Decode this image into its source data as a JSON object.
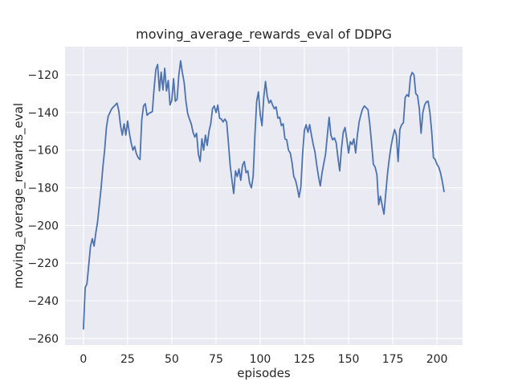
{
  "chart_data": {
    "type": "line",
    "title": "moving_average_rewards_eval of DDPG",
    "xlabel": "episodes",
    "ylabel": "moving_average_rewards_eval",
    "xticks": [
      0,
      25,
      50,
      75,
      100,
      125,
      150,
      175,
      200
    ],
    "yticks": [
      -260,
      -240,
      -220,
      -200,
      -180,
      -160,
      -140,
      -120
    ],
    "xlim": [
      -10.4,
      214.5
    ],
    "ylim": [
      -263.5,
      -105.0
    ],
    "grid": true,
    "legend": null,
    "colors": {
      "line": "#4c72b0",
      "plot_bg": "#eaeaf2",
      "grid": "#ffffff",
      "text": "#262626",
      "figure_bg": "#ffffff"
    },
    "series": [
      {
        "name": "DDPG",
        "x_start": 0,
        "x_step": 1,
        "values": [
          -255,
          -233,
          -231,
          -221,
          -211,
          -207,
          -211,
          -204,
          -198,
          -189,
          -180,
          -169,
          -160,
          -148,
          -142,
          -140,
          -138,
          -137,
          -136,
          -135,
          -139,
          -147,
          -152,
          -146,
          -152,
          -144.5,
          -151,
          -156,
          -160,
          -158,
          -162,
          -164,
          -165,
          -144,
          -136.5,
          -135.3,
          -141.5,
          -140.5,
          -140,
          -139.5,
          -127,
          -117,
          -114.5,
          -128.5,
          -118.5,
          -128,
          -116.5,
          -128.5,
          -123,
          -136,
          -133.5,
          -122,
          -134,
          -133,
          -120,
          -112.5,
          -119,
          -124,
          -134,
          -140.5,
          -143.5,
          -146,
          -150.5,
          -153,
          -151,
          -162,
          -166,
          -154,
          -160,
          -152,
          -157.5,
          -150,
          -146,
          -138,
          -136.5,
          -140,
          -136,
          -143,
          -143.5,
          -145,
          -143.5,
          -145,
          -156,
          -168,
          -176,
          -183,
          -171,
          -174,
          -170,
          -176,
          -168,
          -166,
          -172,
          -171,
          -177.5,
          -180,
          -174,
          -152,
          -134,
          -129,
          -141,
          -147,
          -132,
          -123.5,
          -131.5,
          -135,
          -133.5,
          -136,
          -138,
          -137,
          -143,
          -142.5,
          -147,
          -146,
          -154,
          -154.5,
          -160,
          -161.5,
          -166.5,
          -174,
          -176,
          -180,
          -185,
          -179.5,
          -162,
          -149.5,
          -146.5,
          -150.5,
          -146.5,
          -152,
          -157,
          -161,
          -168,
          -174,
          -179,
          -172,
          -167,
          -162,
          -152,
          -142.5,
          -152,
          -154.5,
          -153.5,
          -156,
          -164,
          -171,
          -159,
          -150.5,
          -148,
          -154,
          -161.5,
          -155.5,
          -157,
          -154,
          -161.5,
          -152,
          -145,
          -141,
          -138,
          -136.5,
          -137.5,
          -138.5,
          -146,
          -156,
          -167.5,
          -169,
          -173,
          -189,
          -184.5,
          -189.5,
          -194,
          -183,
          -172.5,
          -164.5,
          -158,
          -153,
          -149,
          -152,
          -166,
          -149,
          -146.5,
          -145.5,
          -132,
          -130.5,
          -131.5,
          -121,
          -118.7,
          -120,
          -130,
          -131,
          -138,
          -151,
          -140,
          -136,
          -134.3,
          -134,
          -140,
          -150,
          -164,
          -165,
          -167.5,
          -169,
          -172,
          -176.5,
          -182
        ]
      }
    ]
  }
}
